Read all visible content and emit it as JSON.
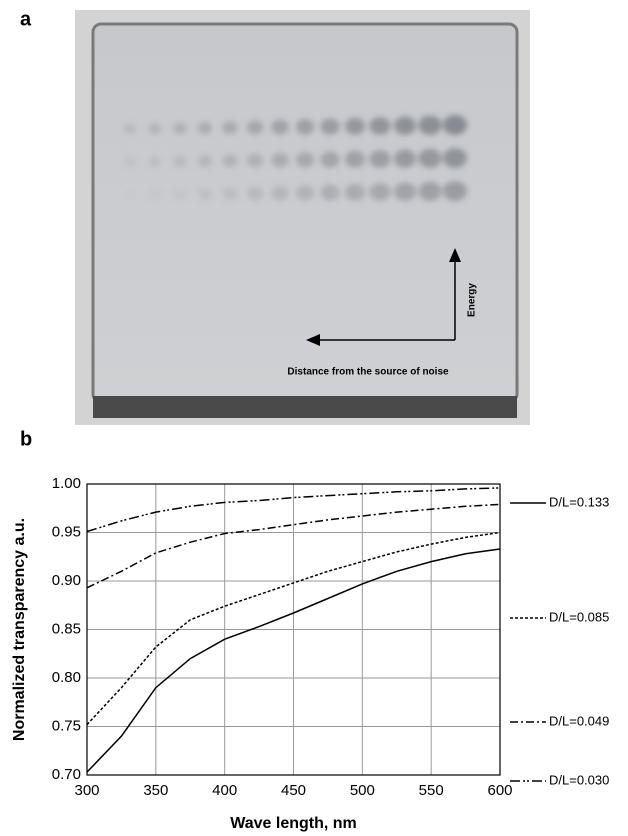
{
  "panel_a": {
    "label": "a",
    "energy_label": "Energy",
    "distance_label": "Distance from the source of noise"
  },
  "panel_b": {
    "label": "b"
  },
  "chart_data": {
    "type": "line",
    "x_label": "Wave length, nm",
    "y_label": "Normalized transparency a.u.",
    "x": [
      300,
      325,
      350,
      375,
      400,
      425,
      450,
      475,
      500,
      525,
      550,
      575,
      600
    ],
    "series": [
      {
        "name": "D/L=0.133",
        "color": "#000000",
        "dash": "none",
        "values": [
          0.703,
          0.74,
          0.79,
          0.82,
          0.84,
          0.853,
          0.867,
          0.882,
          0.897,
          0.91,
          0.92,
          0.928,
          0.933
        ]
      },
      {
        "name": "D/L=0.085",
        "color": "#000000",
        "dash": "3 2",
        "values": [
          0.752,
          0.79,
          0.832,
          0.86,
          0.874,
          0.886,
          0.898,
          0.91,
          0.92,
          0.93,
          0.938,
          0.945,
          0.95
        ]
      },
      {
        "name": "D/L=0.049",
        "color": "#000000",
        "dash": "8 3 2 3",
        "values": [
          0.893,
          0.91,
          0.929,
          0.94,
          0.949,
          0.953,
          0.958,
          0.963,
          0.967,
          0.971,
          0.974,
          0.977,
          0.979
        ]
      },
      {
        "name": "D/L=0.030",
        "color": "#000000",
        "dash": "10 3 2 2 2 3",
        "values": [
          0.951,
          0.962,
          0.971,
          0.977,
          0.981,
          0.983,
          0.986,
          0.988,
          0.99,
          0.992,
          0.993,
          0.995,
          0.996
        ]
      }
    ],
    "xlim": [
      300,
      600
    ],
    "xticks": [
      300,
      350,
      400,
      450,
      500,
      550,
      600
    ],
    "ylim": [
      0.7,
      1.0
    ],
    "yticks": [
      {
        "value": 0.7,
        "label": "0.70"
      },
      {
        "value": 0.75,
        "label": "0.75"
      },
      {
        "value": 0.8,
        "label": "0.80"
      },
      {
        "value": 0.85,
        "label": "0.85"
      },
      {
        "value": 0.9,
        "label": "0.90"
      },
      {
        "value": 0.95,
        "label": "0.95"
      },
      {
        "value": 1.0,
        "label": "1.00"
      }
    ],
    "grid": true,
    "legend": "right"
  }
}
